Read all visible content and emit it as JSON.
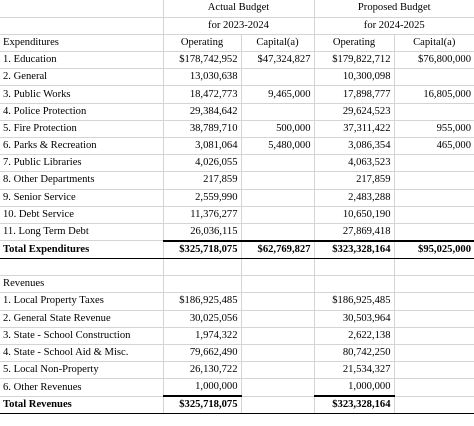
{
  "header": {
    "actual_title": "Actual Budget",
    "actual_period": "for 2023-2024",
    "proposed_title": "Proposed Budget",
    "proposed_period": "for 2024-2025",
    "col_operating": "Operating",
    "col_capital": "Capital(a)"
  },
  "expenditures": {
    "section_label": "Expenditures",
    "rows": [
      {
        "label": "1. Education",
        "act_op": "$178,742,952",
        "act_cap": "$47,324,827",
        "prop_op": "$179,822,712",
        "prop_cap": "$76,800,000"
      },
      {
        "label": "2. General",
        "act_op": "13,030,638",
        "act_cap": "",
        "prop_op": "10,300,098",
        "prop_cap": ""
      },
      {
        "label": "3. Public Works",
        "act_op": "18,472,773",
        "act_cap": "9,465,000",
        "prop_op": "17,898,777",
        "prop_cap": "16,805,000"
      },
      {
        "label": "4. Police Protection",
        "act_op": "29,384,642",
        "act_cap": "",
        "prop_op": "29,624,523",
        "prop_cap": ""
      },
      {
        "label": "5. Fire Protection",
        "act_op": "38,789,710",
        "act_cap": "500,000",
        "prop_op": "37,311,422",
        "prop_cap": "955,000"
      },
      {
        "label": "6. Parks & Recreation",
        "act_op": "3,081,064",
        "act_cap": "5,480,000",
        "prop_op": "3,086,354",
        "prop_cap": "465,000"
      },
      {
        "label": "7. Public Libraries",
        "act_op": "4,026,055",
        "act_cap": "",
        "prop_op": "4,063,523",
        "prop_cap": ""
      },
      {
        "label": "8. Other Departments",
        "act_op": "217,859",
        "act_cap": "",
        "prop_op": "217,859",
        "prop_cap": ""
      },
      {
        "label": "9. Senior Service",
        "act_op": "2,559,990",
        "act_cap": "",
        "prop_op": "2,483,288",
        "prop_cap": ""
      },
      {
        "label": "10. Debt Service",
        "act_op": "11,376,277",
        "act_cap": "",
        "prop_op": "10,650,190",
        "prop_cap": ""
      },
      {
        "label": "11. Long Term Debt",
        "act_op": "26,036,115",
        "act_cap": "",
        "prop_op": "27,869,418",
        "prop_cap": ""
      }
    ],
    "total": {
      "label": "Total Expenditures",
      "act_op": "$325,718,075",
      "act_cap": "$62,769,827",
      "prop_op": "$323,328,164",
      "prop_cap": "$95,025,000"
    }
  },
  "revenues": {
    "section_label": "Revenues",
    "rows": [
      {
        "label": "1. Local Property Taxes",
        "act_op": "$186,925,485",
        "prop_op": "$186,925,485"
      },
      {
        "label": "2. General State Revenue",
        "act_op": "30,025,056",
        "prop_op": "30,503,964"
      },
      {
        "label": "3. State - School Construction",
        "act_op": "1,974,322",
        "prop_op": "2,622,138"
      },
      {
        "label": "4. State - School Aid  & Misc.",
        "act_op": "79,662,490",
        "prop_op": "80,742,250"
      },
      {
        "label": "5. Local Non-Property",
        "act_op": "26,130,722",
        "prop_op": "21,534,327"
      },
      {
        "label": "6. Other Revenues",
        "act_op": "1,000,000",
        "prop_op": "1,000,000"
      }
    ],
    "total": {
      "label": "Total Revenues",
      "act_op": "$325,718,075",
      "prop_op": "$323,328,164"
    }
  }
}
